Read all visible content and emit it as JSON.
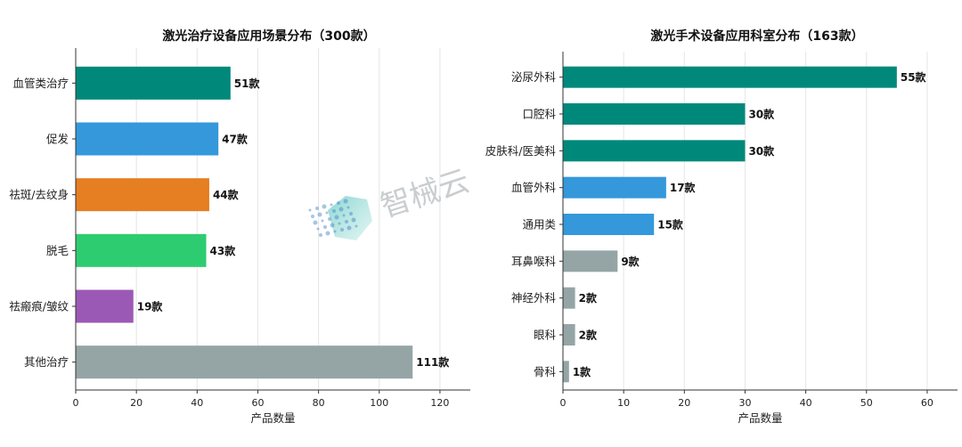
{
  "chart_data": [
    {
      "type": "bar",
      "orientation": "horizontal",
      "title": "激光治疗设备应用场景分布（300款）",
      "xlabel": "产品数量",
      "ylabel": "",
      "categories": [
        "血管类治疗",
        "促发",
        "祛斑/去纹身",
        "脱毛",
        "祛瘢痕/皱纹",
        "其他治疗"
      ],
      "values": [
        51,
        47,
        44,
        43,
        19,
        111
      ],
      "value_labels": [
        "51款",
        "47款",
        "44款",
        "43款",
        "19款",
        "111款"
      ],
      "colors": [
        "#00897b",
        "#3498db",
        "#e67e22",
        "#2ecc71",
        "#9b59b6",
        "#95a5a6"
      ],
      "xlim": [
        0,
        130
      ],
      "xticks": [
        0,
        20,
        40,
        60,
        80,
        100,
        120
      ],
      "grid": "vertical"
    },
    {
      "type": "bar",
      "orientation": "horizontal",
      "title": "激光手术设备应用科室分布（163款）",
      "xlabel": "产品数量",
      "ylabel": "",
      "categories": [
        "泌尿外科",
        "口腔科",
        "皮肤科/医美科",
        "血管外科",
        "通用类",
        "耳鼻喉科",
        "神经外科",
        "眼科",
        "骨科"
      ],
      "values": [
        55,
        30,
        30,
        17,
        15,
        9,
        2,
        2,
        1
      ],
      "value_labels": [
        "55款",
        "30款",
        "30款",
        "17款",
        "15款",
        "9款",
        "2款",
        "2款",
        "1款"
      ],
      "colors": [
        "#00897b",
        "#00897b",
        "#00897b",
        "#3498db",
        "#3498db",
        "#95a5a6",
        "#95a5a6",
        "#95a5a6",
        "#95a5a6"
      ],
      "xlim": [
        0,
        65
      ],
      "xticks": [
        0,
        10,
        20,
        30,
        40,
        50,
        60
      ],
      "grid": "vertical"
    }
  ],
  "watermark": {
    "text": "智械云",
    "colors": [
      "#2bb5b0",
      "#3b7fc4"
    ]
  }
}
